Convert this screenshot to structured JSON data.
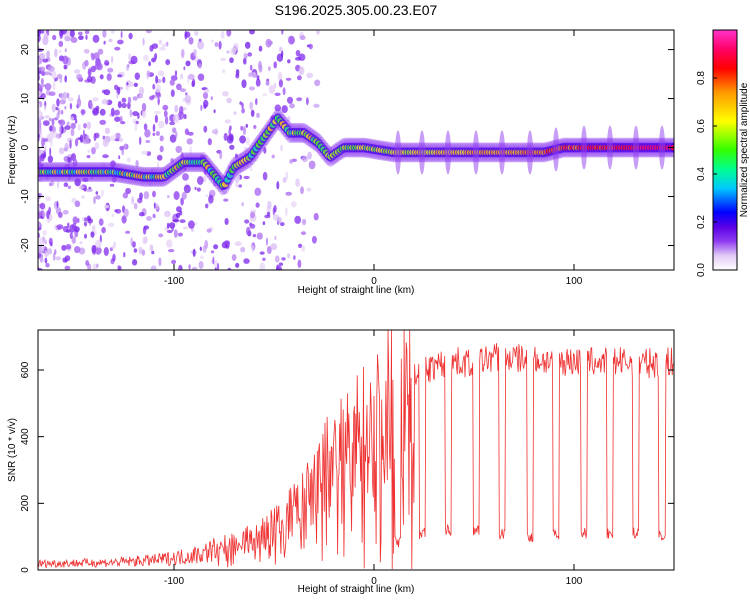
{
  "chart_data": [
    {
      "type": "heatmap",
      "title": "S196.2025.305.00.23.E07",
      "xlabel": "Height of straight line (km)",
      "ylabel": "Frequency (Hz)",
      "xlim": [
        -168,
        150
      ],
      "ylim": [
        -25,
        24
      ],
      "xticks": [
        -100,
        0,
        100
      ],
      "yticks": [
        -20,
        -10,
        0,
        10,
        20
      ],
      "colorbar": {
        "label": "Normalized spectral amplitude",
        "range": [
          0,
          1
        ],
        "ticks": [
          "0.0",
          "0.2",
          "0.4",
          "0.6",
          "0.8"
        ],
        "colors": [
          "#ffffff",
          "#e2cbf5",
          "#8f3bf0",
          "#5a00e6",
          "#0000ff",
          "#00c8ff",
          "#00ff90",
          "#33ff00",
          "#ffff00",
          "#ff9900",
          "#ff0000",
          "#ff0066",
          "#ff33cc"
        ]
      },
      "ridge": {
        "x": [
          -168,
          -150,
          -130,
          -115,
          -105,
          -95,
          -85,
          -75,
          -70,
          -62,
          -55,
          -48,
          -42,
          -35,
          -28,
          -22,
          -15,
          -5,
          10,
          30,
          50,
          70,
          85,
          95,
          105,
          120,
          135,
          150
        ],
        "y": [
          -5,
          -5,
          -5,
          -6,
          -6,
          -3,
          -3,
          -8,
          -4,
          -2,
          2,
          6,
          3,
          3,
          1,
          -2,
          0,
          0,
          -1,
          -1,
          -1,
          -1,
          -1,
          0,
          0,
          0,
          0,
          0
        ]
      }
    },
    {
      "type": "line",
      "xlabel": "Height of straight line (km)",
      "ylabel": "SNR (10 * v/v)",
      "xlim": [
        -168,
        150
      ],
      "ylim": [
        0,
        720
      ],
      "xticks": [
        -100,
        0,
        100
      ],
      "yticks": [
        0,
        200,
        400,
        600
      ],
      "color": "#ee3030",
      "envelope": {
        "x": [
          -168,
          -130,
          -110,
          -95,
          -85,
          -75,
          -65,
          -55,
          -45,
          -40,
          -35,
          -30,
          -25,
          -20,
          -15,
          -10,
          -5,
          0,
          5,
          10,
          15,
          20,
          25,
          30,
          40,
          50,
          60,
          80,
          100,
          120,
          140,
          150
        ],
        "y": [
          18,
          22,
          28,
          38,
          48,
          70,
          90,
          110,
          150,
          180,
          200,
          250,
          300,
          350,
          380,
          400,
          420,
          430,
          470,
          510,
          540,
          580,
          600,
          610,
          625,
          620,
          640,
          630,
          625,
          625,
          620,
          625
        ]
      },
      "dropouts": {
        "x": [
          12,
          24,
          37,
          51,
          64,
          78,
          91,
          105,
          118,
          131,
          144
        ],
        "y": [
          85,
          110,
          120,
          120,
          110,
          100,
          110,
          110,
          110,
          110,
          100
        ]
      }
    }
  ]
}
